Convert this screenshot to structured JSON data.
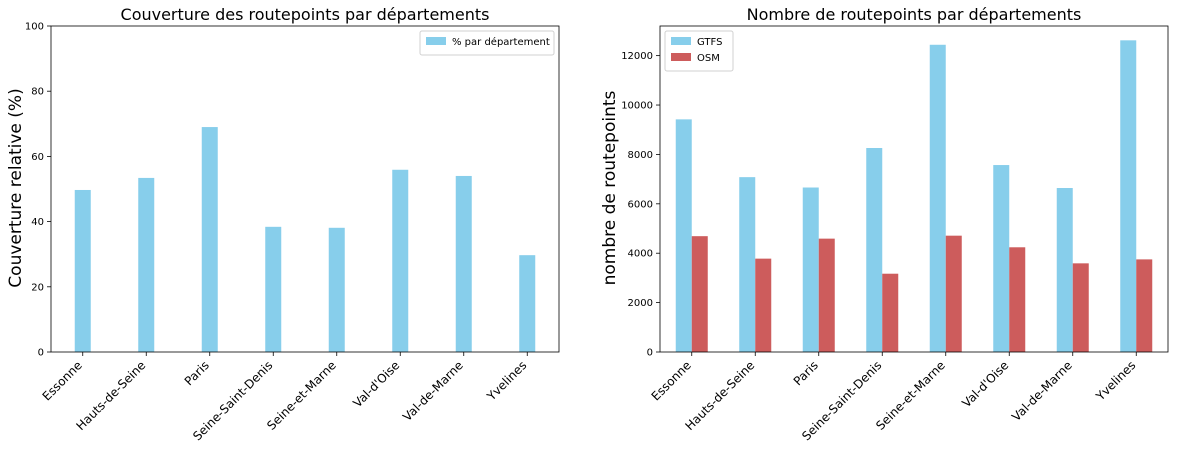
{
  "chart_data": [
    {
      "type": "bar",
      "title": "Couverture des routepoints par départements",
      "xlabel": "",
      "ylabel": "Couverture relative (%)",
      "categories": [
        "Essonne",
        "Hauts-de-Seine",
        "Paris",
        "Seine-Saint-Denis",
        "Seine-et-Marne",
        "Val-d'Oise",
        "Val-de-Marne",
        "Yvelines"
      ],
      "series": [
        {
          "name": "% par département",
          "color": "#87ceeb",
          "values": [
            49.7,
            53.4,
            69.0,
            38.4,
            38.1,
            55.9,
            54.0,
            29.7
          ]
        }
      ],
      "ylim": [
        0,
        100
      ],
      "yticks": [
        0,
        20,
        40,
        60,
        80,
        100
      ],
      "legend": "top-right",
      "grid": false
    },
    {
      "type": "bar",
      "title": "Nombre de routepoints par départements",
      "xlabel": "",
      "ylabel": "nombre de routepoints",
      "categories": [
        "Essonne",
        "Hauts-de-Seine",
        "Paris",
        "Seine-Saint-Denis",
        "Seine-et-Marne",
        "Val-d'Oise",
        "Val-de-Marne",
        "Yvelines"
      ],
      "series": [
        {
          "name": "GTFS",
          "color": "#87ceeb",
          "values": [
            9420,
            7080,
            6660,
            8260,
            12440,
            7570,
            6640,
            12620
          ]
        },
        {
          "name": "OSM",
          "color": "#cd5c5c",
          "values": [
            4690,
            3780,
            4590,
            3170,
            4710,
            4240,
            3590,
            3750
          ]
        }
      ],
      "ylim": [
        0,
        13200
      ],
      "yticks": [
        0,
        2000,
        4000,
        6000,
        8000,
        10000,
        12000
      ],
      "legend": "top-left",
      "grid": false
    }
  ]
}
